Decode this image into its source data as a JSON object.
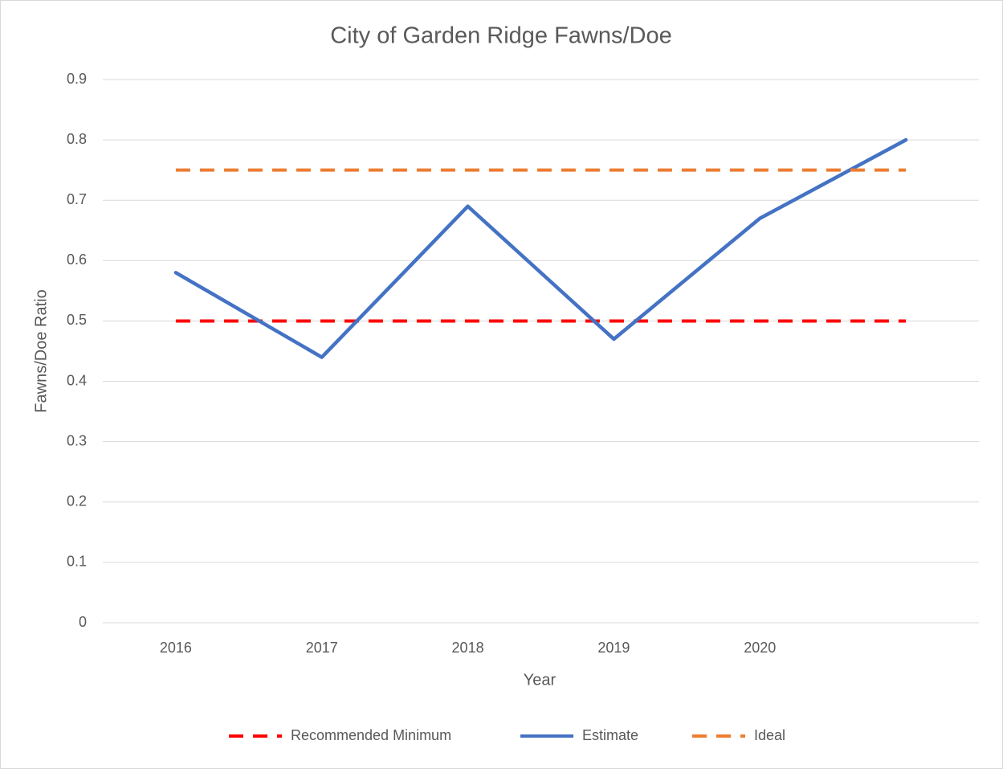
{
  "chart_data": {
    "type": "line",
    "title": "City of Garden Ridge Fawns/Doe",
    "x_label": "Year",
    "y_label": "Fawns/Doe Ratio",
    "categories": [
      "2016",
      "2017",
      "2018",
      "2019",
      "2020",
      null
    ],
    "series": [
      {
        "name": "Recommended Minimum",
        "color": "#ff0000",
        "dashed": true,
        "values": [
          0.5,
          0.5,
          0.5,
          0.5,
          0.5,
          0.5
        ]
      },
      {
        "name": "Estimate",
        "color": "#4472c4",
        "dashed": false,
        "values": [
          0.58,
          0.44,
          0.69,
          0.47,
          0.67,
          0.8
        ]
      },
      {
        "name": "Ideal",
        "color": "#ed7d31",
        "dashed": true,
        "values": [
          0.75,
          0.75,
          0.75,
          0.75,
          0.75,
          0.75
        ]
      }
    ],
    "ylim": [
      0,
      0.9
    ],
    "yticks": [
      0,
      0.1,
      0.2,
      0.3,
      0.4,
      0.5,
      0.6,
      0.7,
      0.8,
      0.9
    ],
    "grid": true,
    "legend": "bottom"
  }
}
